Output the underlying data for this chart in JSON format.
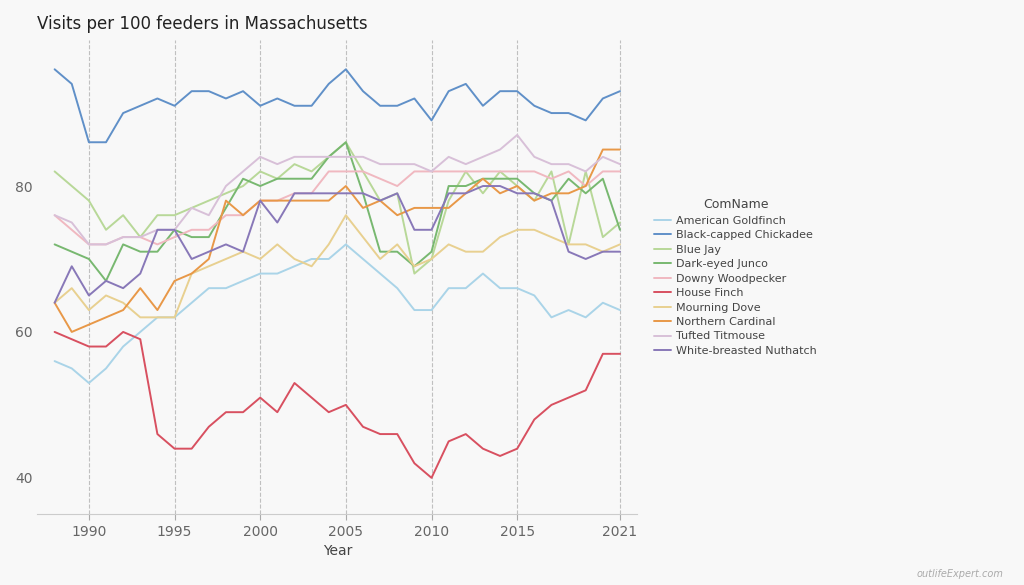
{
  "title": "Visits per 100 feeders in Massachusetts",
  "xlabel": "Year",
  "ylabel": "",
  "ylim": [
    35,
    100
  ],
  "yticks": [
    40,
    60,
    80
  ],
  "watermark": "outlifeExpert.com",
  "legend_title": "ComName",
  "species": [
    "American Goldfinch",
    "Black-capped Chickadee",
    "Blue Jay",
    "Dark-eyed Junco",
    "Downy Woodpecker",
    "House Finch",
    "Mourning Dove",
    "Northern Cardinal",
    "Tufted Titmouse",
    "White-breasted Nuthatch"
  ],
  "colors": {
    "American Goldfinch": "#aad4e8",
    "Black-capped Chickadee": "#6090c8",
    "Blue Jay": "#b8d898",
    "Dark-eyed Junco": "#78b870",
    "Downy Woodpecker": "#f0b8c0",
    "House Finch": "#d85060",
    "Mourning Dove": "#e8d090",
    "Northern Cardinal": "#e89848",
    "Tufted Titmouse": "#d8c0d8",
    "White-breasted Nuthatch": "#8878b8"
  },
  "data": {
    "American Goldfinch": {
      "years": [
        1988,
        1989,
        1990,
        1991,
        1992,
        1993,
        1994,
        1995,
        1996,
        1997,
        1998,
        1999,
        2000,
        2001,
        2002,
        2003,
        2004,
        2005,
        2006,
        2007,
        2008,
        2009,
        2010,
        2011,
        2012,
        2013,
        2014,
        2015,
        2016,
        2017,
        2018,
        2019,
        2020,
        2021
      ],
      "values": [
        56,
        55,
        53,
        55,
        58,
        60,
        62,
        62,
        64,
        66,
        66,
        67,
        68,
        68,
        69,
        70,
        70,
        72,
        70,
        68,
        66,
        63,
        63,
        66,
        66,
        68,
        66,
        66,
        65,
        62,
        63,
        62,
        64,
        63
      ]
    },
    "Black-capped Chickadee": {
      "years": [
        1988,
        1989,
        1990,
        1991,
        1992,
        1993,
        1994,
        1995,
        1996,
        1997,
        1998,
        1999,
        2000,
        2001,
        2002,
        2003,
        2004,
        2005,
        2006,
        2007,
        2008,
        2009,
        2010,
        2011,
        2012,
        2013,
        2014,
        2015,
        2016,
        2017,
        2018,
        2019,
        2020,
        2021
      ],
      "values": [
        96,
        94,
        86,
        86,
        90,
        91,
        92,
        91,
        93,
        93,
        92,
        93,
        91,
        92,
        91,
        91,
        94,
        96,
        93,
        91,
        91,
        92,
        89,
        93,
        94,
        91,
        93,
        93,
        91,
        90,
        90,
        89,
        92,
        93
      ]
    },
    "Blue Jay": {
      "years": [
        1988,
        1989,
        1990,
        1991,
        1992,
        1993,
        1994,
        1995,
        1996,
        1997,
        1998,
        1999,
        2000,
        2001,
        2002,
        2003,
        2004,
        2005,
        2006,
        2007,
        2008,
        2009,
        2010,
        2011,
        2012,
        2013,
        2014,
        2015,
        2016,
        2017,
        2018,
        2019,
        2020,
        2021
      ],
      "values": [
        82,
        80,
        78,
        74,
        76,
        73,
        76,
        76,
        77,
        78,
        79,
        80,
        82,
        81,
        83,
        82,
        84,
        86,
        82,
        78,
        79,
        68,
        70,
        78,
        82,
        79,
        82,
        80,
        78,
        82,
        72,
        82,
        73,
        75
      ]
    },
    "Dark-eyed Junco": {
      "years": [
        1988,
        1989,
        1990,
        1991,
        1992,
        1993,
        1994,
        1995,
        1996,
        1997,
        1998,
        1999,
        2000,
        2001,
        2002,
        2003,
        2004,
        2005,
        2006,
        2007,
        2008,
        2009,
        2010,
        2011,
        2012,
        2013,
        2014,
        2015,
        2016,
        2017,
        2018,
        2019,
        2020,
        2021
      ],
      "values": [
        72,
        71,
        70,
        67,
        72,
        71,
        71,
        74,
        73,
        73,
        77,
        81,
        80,
        81,
        81,
        81,
        84,
        86,
        79,
        71,
        71,
        69,
        71,
        80,
        80,
        81,
        81,
        81,
        79,
        78,
        81,
        79,
        81,
        74
      ]
    },
    "Downy Woodpecker": {
      "years": [
        1988,
        1989,
        1990,
        1991,
        1992,
        1993,
        1994,
        1995,
        1996,
        1997,
        1998,
        1999,
        2000,
        2001,
        2002,
        2003,
        2004,
        2005,
        2006,
        2007,
        2008,
        2009,
        2010,
        2011,
        2012,
        2013,
        2014,
        2015,
        2016,
        2017,
        2018,
        2019,
        2020,
        2021
      ],
      "values": [
        76,
        74,
        72,
        72,
        73,
        73,
        72,
        73,
        74,
        74,
        76,
        76,
        78,
        78,
        79,
        79,
        82,
        82,
        82,
        81,
        80,
        82,
        82,
        82,
        82,
        82,
        82,
        82,
        82,
        81,
        82,
        80,
        82,
        82
      ]
    },
    "House Finch": {
      "years": [
        1988,
        1989,
        1990,
        1991,
        1992,
        1993,
        1994,
        1995,
        1996,
        1997,
        1998,
        1999,
        2000,
        2001,
        2002,
        2003,
        2004,
        2005,
        2006,
        2007,
        2008,
        2009,
        2010,
        2011,
        2012,
        2013,
        2014,
        2015,
        2016,
        2017,
        2018,
        2019,
        2020,
        2021
      ],
      "values": [
        60,
        59,
        58,
        58,
        60,
        59,
        46,
        44,
        44,
        47,
        49,
        49,
        51,
        49,
        53,
        51,
        49,
        50,
        47,
        46,
        46,
        42,
        40,
        45,
        46,
        44,
        43,
        44,
        48,
        50,
        51,
        52,
        57,
        57
      ]
    },
    "Mourning Dove": {
      "years": [
        1988,
        1989,
        1990,
        1991,
        1992,
        1993,
        1994,
        1995,
        1996,
        1997,
        1998,
        1999,
        2000,
        2001,
        2002,
        2003,
        2004,
        2005,
        2006,
        2007,
        2008,
        2009,
        2010,
        2011,
        2012,
        2013,
        2014,
        2015,
        2016,
        2017,
        2018,
        2019,
        2020,
        2021
      ],
      "values": [
        64,
        66,
        63,
        65,
        64,
        62,
        62,
        62,
        68,
        69,
        70,
        71,
        70,
        72,
        70,
        69,
        72,
        76,
        73,
        70,
        72,
        69,
        70,
        72,
        71,
        71,
        73,
        74,
        74,
        73,
        72,
        72,
        71,
        72
      ]
    },
    "Northern Cardinal": {
      "years": [
        1988,
        1989,
        1990,
        1991,
        1992,
        1993,
        1994,
        1995,
        1996,
        1997,
        1998,
        1999,
        2000,
        2001,
        2002,
        2003,
        2004,
        2005,
        2006,
        2007,
        2008,
        2009,
        2010,
        2011,
        2012,
        2013,
        2014,
        2015,
        2016,
        2017,
        2018,
        2019,
        2020,
        2021
      ],
      "values": [
        64,
        60,
        61,
        62,
        63,
        66,
        63,
        67,
        68,
        70,
        78,
        76,
        78,
        78,
        78,
        78,
        78,
        80,
        77,
        78,
        76,
        77,
        77,
        77,
        79,
        81,
        79,
        80,
        78,
        79,
        79,
        80,
        85,
        85
      ]
    },
    "Tufted Titmouse": {
      "years": [
        1988,
        1989,
        1990,
        1991,
        1992,
        1993,
        1994,
        1995,
        1996,
        1997,
        1998,
        1999,
        2000,
        2001,
        2002,
        2003,
        2004,
        2005,
        2006,
        2007,
        2008,
        2009,
        2010,
        2011,
        2012,
        2013,
        2014,
        2015,
        2016,
        2017,
        2018,
        2019,
        2020,
        2021
      ],
      "values": [
        76,
        75,
        72,
        72,
        73,
        73,
        74,
        74,
        77,
        76,
        80,
        82,
        84,
        83,
        84,
        84,
        84,
        84,
        84,
        83,
        83,
        83,
        82,
        84,
        83,
        84,
        85,
        87,
        84,
        83,
        83,
        82,
        84,
        83
      ]
    },
    "White-breasted Nuthatch": {
      "years": [
        1988,
        1989,
        1990,
        1991,
        1992,
        1993,
        1994,
        1995,
        1996,
        1997,
        1998,
        1999,
        2000,
        2001,
        2002,
        2003,
        2004,
        2005,
        2006,
        2007,
        2008,
        2009,
        2010,
        2011,
        2012,
        2013,
        2014,
        2015,
        2016,
        2017,
        2018,
        2019,
        2020,
        2021
      ],
      "values": [
        64,
        69,
        65,
        67,
        66,
        68,
        74,
        74,
        70,
        71,
        72,
        71,
        78,
        75,
        79,
        79,
        79,
        79,
        79,
        78,
        79,
        74,
        74,
        79,
        79,
        80,
        80,
        79,
        79,
        78,
        71,
        70,
        71,
        71
      ]
    }
  },
  "vlines": [
    1990,
    1995,
    2000,
    2005,
    2010,
    2015,
    2021
  ],
  "background_color": "#f8f8f8",
  "linewidth": 1.4
}
